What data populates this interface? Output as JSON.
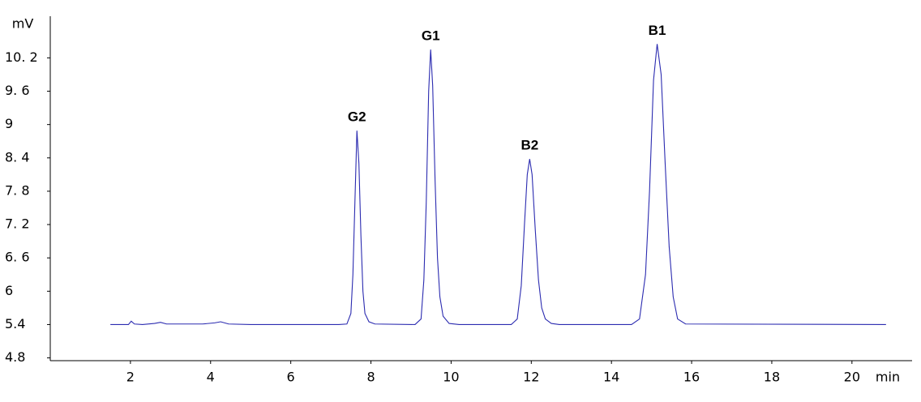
{
  "chart_data": {
    "type": "line",
    "y_label": "mV",
    "x_label": "min",
    "xlim": [
      0,
      21.5
    ],
    "ylim": [
      4.75,
      10.95
    ],
    "xticks": [
      2,
      4,
      6,
      8,
      10,
      12,
      14,
      16,
      18,
      20
    ],
    "yticks": [
      4.8,
      5.4,
      {
        "value": 6,
        "label": "6"
      },
      {
        "value": 6.6,
        "label": "6. 6"
      },
      {
        "value": 7.2,
        "label": "7. 2"
      },
      {
        "value": 7.8,
        "label": "7. 8"
      },
      {
        "value": 8.4,
        "label": "8. 4"
      },
      {
        "value": 9,
        "label": "9"
      },
      {
        "value": 9.6,
        "label": "9. 6"
      },
      {
        "value": 10.2,
        "label": "10. 2"
      }
    ],
    "grid": false,
    "series": [
      {
        "color": "#2b2bb0",
        "x": [
          1.5,
          1.95,
          2.02,
          2.1,
          2.3,
          2.6,
          2.75,
          2.9,
          3.3,
          3.8,
          4.1,
          4.25,
          4.45,
          5.0,
          7.2,
          7.4,
          7.5,
          7.55,
          7.6,
          7.65,
          7.7,
          7.75,
          7.8,
          7.85,
          7.95,
          8.1,
          9.1,
          9.25,
          9.32,
          9.38,
          9.44,
          9.49,
          9.54,
          9.6,
          9.66,
          9.72,
          9.8,
          9.95,
          10.2,
          11.5,
          11.65,
          11.75,
          11.83,
          11.9,
          11.96,
          12.02,
          12.1,
          12.18,
          12.26,
          12.35,
          12.5,
          12.7,
          14.5,
          14.7,
          14.85,
          14.95,
          15.05,
          15.14,
          15.24,
          15.34,
          15.44,
          15.54,
          15.65,
          15.85,
          20.85
        ],
        "values": [
          5.4,
          5.4,
          5.46,
          5.41,
          5.4,
          5.42,
          5.44,
          5.41,
          5.41,
          5.41,
          5.43,
          5.45,
          5.41,
          5.4,
          5.4,
          5.41,
          5.6,
          6.3,
          7.6,
          8.89,
          8.3,
          7.0,
          6.0,
          5.6,
          5.45,
          5.41,
          5.4,
          5.5,
          6.2,
          7.6,
          9.6,
          10.35,
          9.7,
          8.0,
          6.6,
          5.9,
          5.55,
          5.42,
          5.4,
          5.4,
          5.5,
          6.1,
          7.2,
          8.1,
          8.38,
          8.1,
          7.1,
          6.2,
          5.7,
          5.5,
          5.42,
          5.4,
          5.4,
          5.5,
          6.3,
          7.8,
          9.8,
          10.45,
          9.9,
          8.3,
          6.8,
          5.9,
          5.5,
          5.41,
          5.4
        ]
      }
    ],
    "annotations": [
      {
        "text": "G2",
        "x": 7.65,
        "y": 8.89
      },
      {
        "text": "G1",
        "x": 9.49,
        "y": 10.35
      },
      {
        "text": "B2",
        "x": 11.96,
        "y": 8.38
      },
      {
        "text": "B1",
        "x": 15.14,
        "y": 10.45
      }
    ]
  }
}
